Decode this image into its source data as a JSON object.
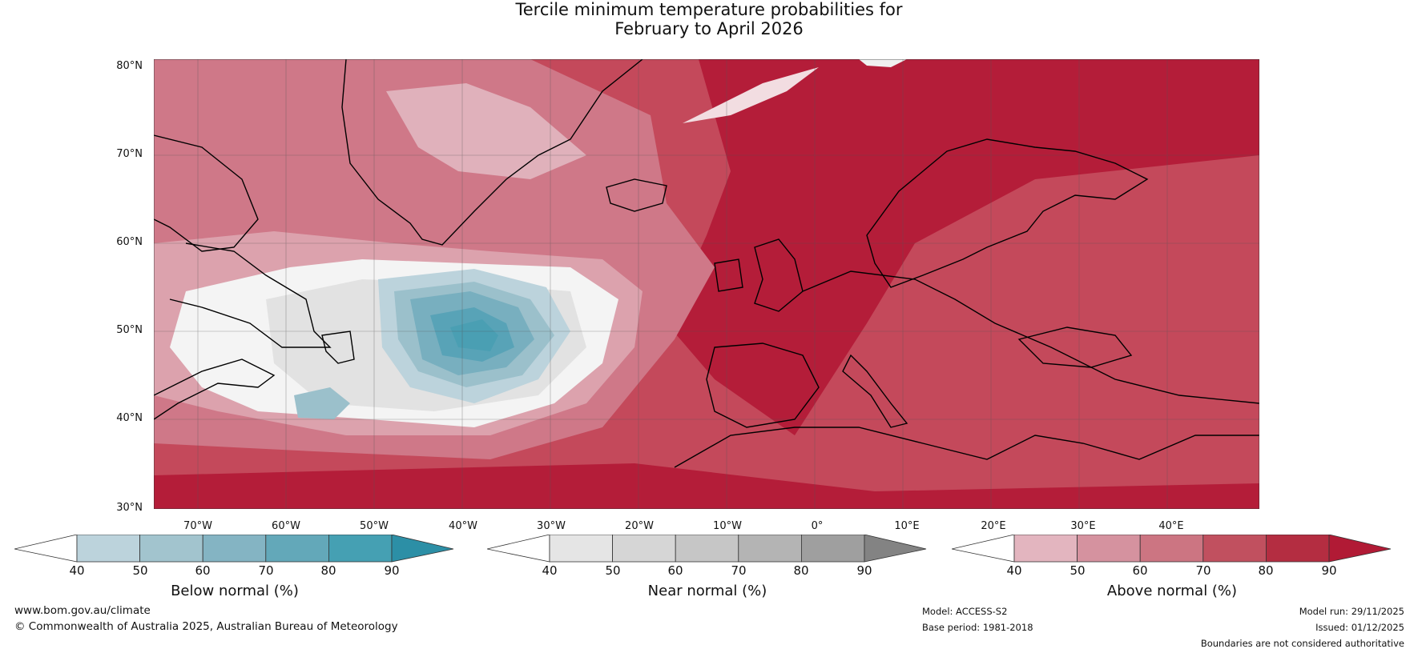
{
  "title": {
    "line1": "Tercile minimum temperature probabilities for",
    "line2": "February to April 2026"
  },
  "map": {
    "latitude_labels": [
      "80°N",
      "70°N",
      "60°N",
      "50°N",
      "40°N",
      "30°N"
    ],
    "longitude_labels": [
      "70°W",
      "60°W",
      "50°W",
      "40°W",
      "30°W",
      "20°W",
      "10°W",
      "0°",
      "10°E",
      "20°E",
      "30°E",
      "40°E"
    ],
    "dominant_category": "Above normal"
  },
  "colorbars": [
    {
      "label": "Below normal (%)",
      "ticks": [
        "40",
        "50",
        "60",
        "70",
        "80",
        "90"
      ],
      "colors": [
        "#ffffff",
        "#bcd3dc",
        "#a2c4ce",
        "#84b4c3",
        "#63a8b9",
        "#45a0b3",
        "#2c8fa6"
      ]
    },
    {
      "label": "Near normal (%)",
      "ticks": [
        "40",
        "50",
        "60",
        "70",
        "80",
        "90"
      ],
      "colors": [
        "#ffffff",
        "#e5e5e5",
        "#d6d6d6",
        "#c6c6c6",
        "#b4b4b4",
        "#9f9f9f",
        "#838383"
      ]
    },
    {
      "label": "Above normal (%)",
      "ticks": [
        "40",
        "50",
        "60",
        "70",
        "80",
        "90"
      ],
      "colors": [
        "#ffffff",
        "#e3b5bf",
        "#d5929f",
        "#cc7582",
        "#c1505f",
        "#b42d41",
        "#b11a35"
      ]
    }
  ],
  "footer": {
    "website": "www.bom.gov.au/climate",
    "copyright": "© Commonwealth of Australia 2025, Australian Bureau of Meteorology",
    "model": "Model: ACCESS-S2",
    "base_period": "Base period: 1981-2018",
    "model_run": "Model run: 29/11/2025",
    "issued": "Issued: 01/12/2025",
    "disclaimer": "Boundaries are not considered authoritative"
  }
}
